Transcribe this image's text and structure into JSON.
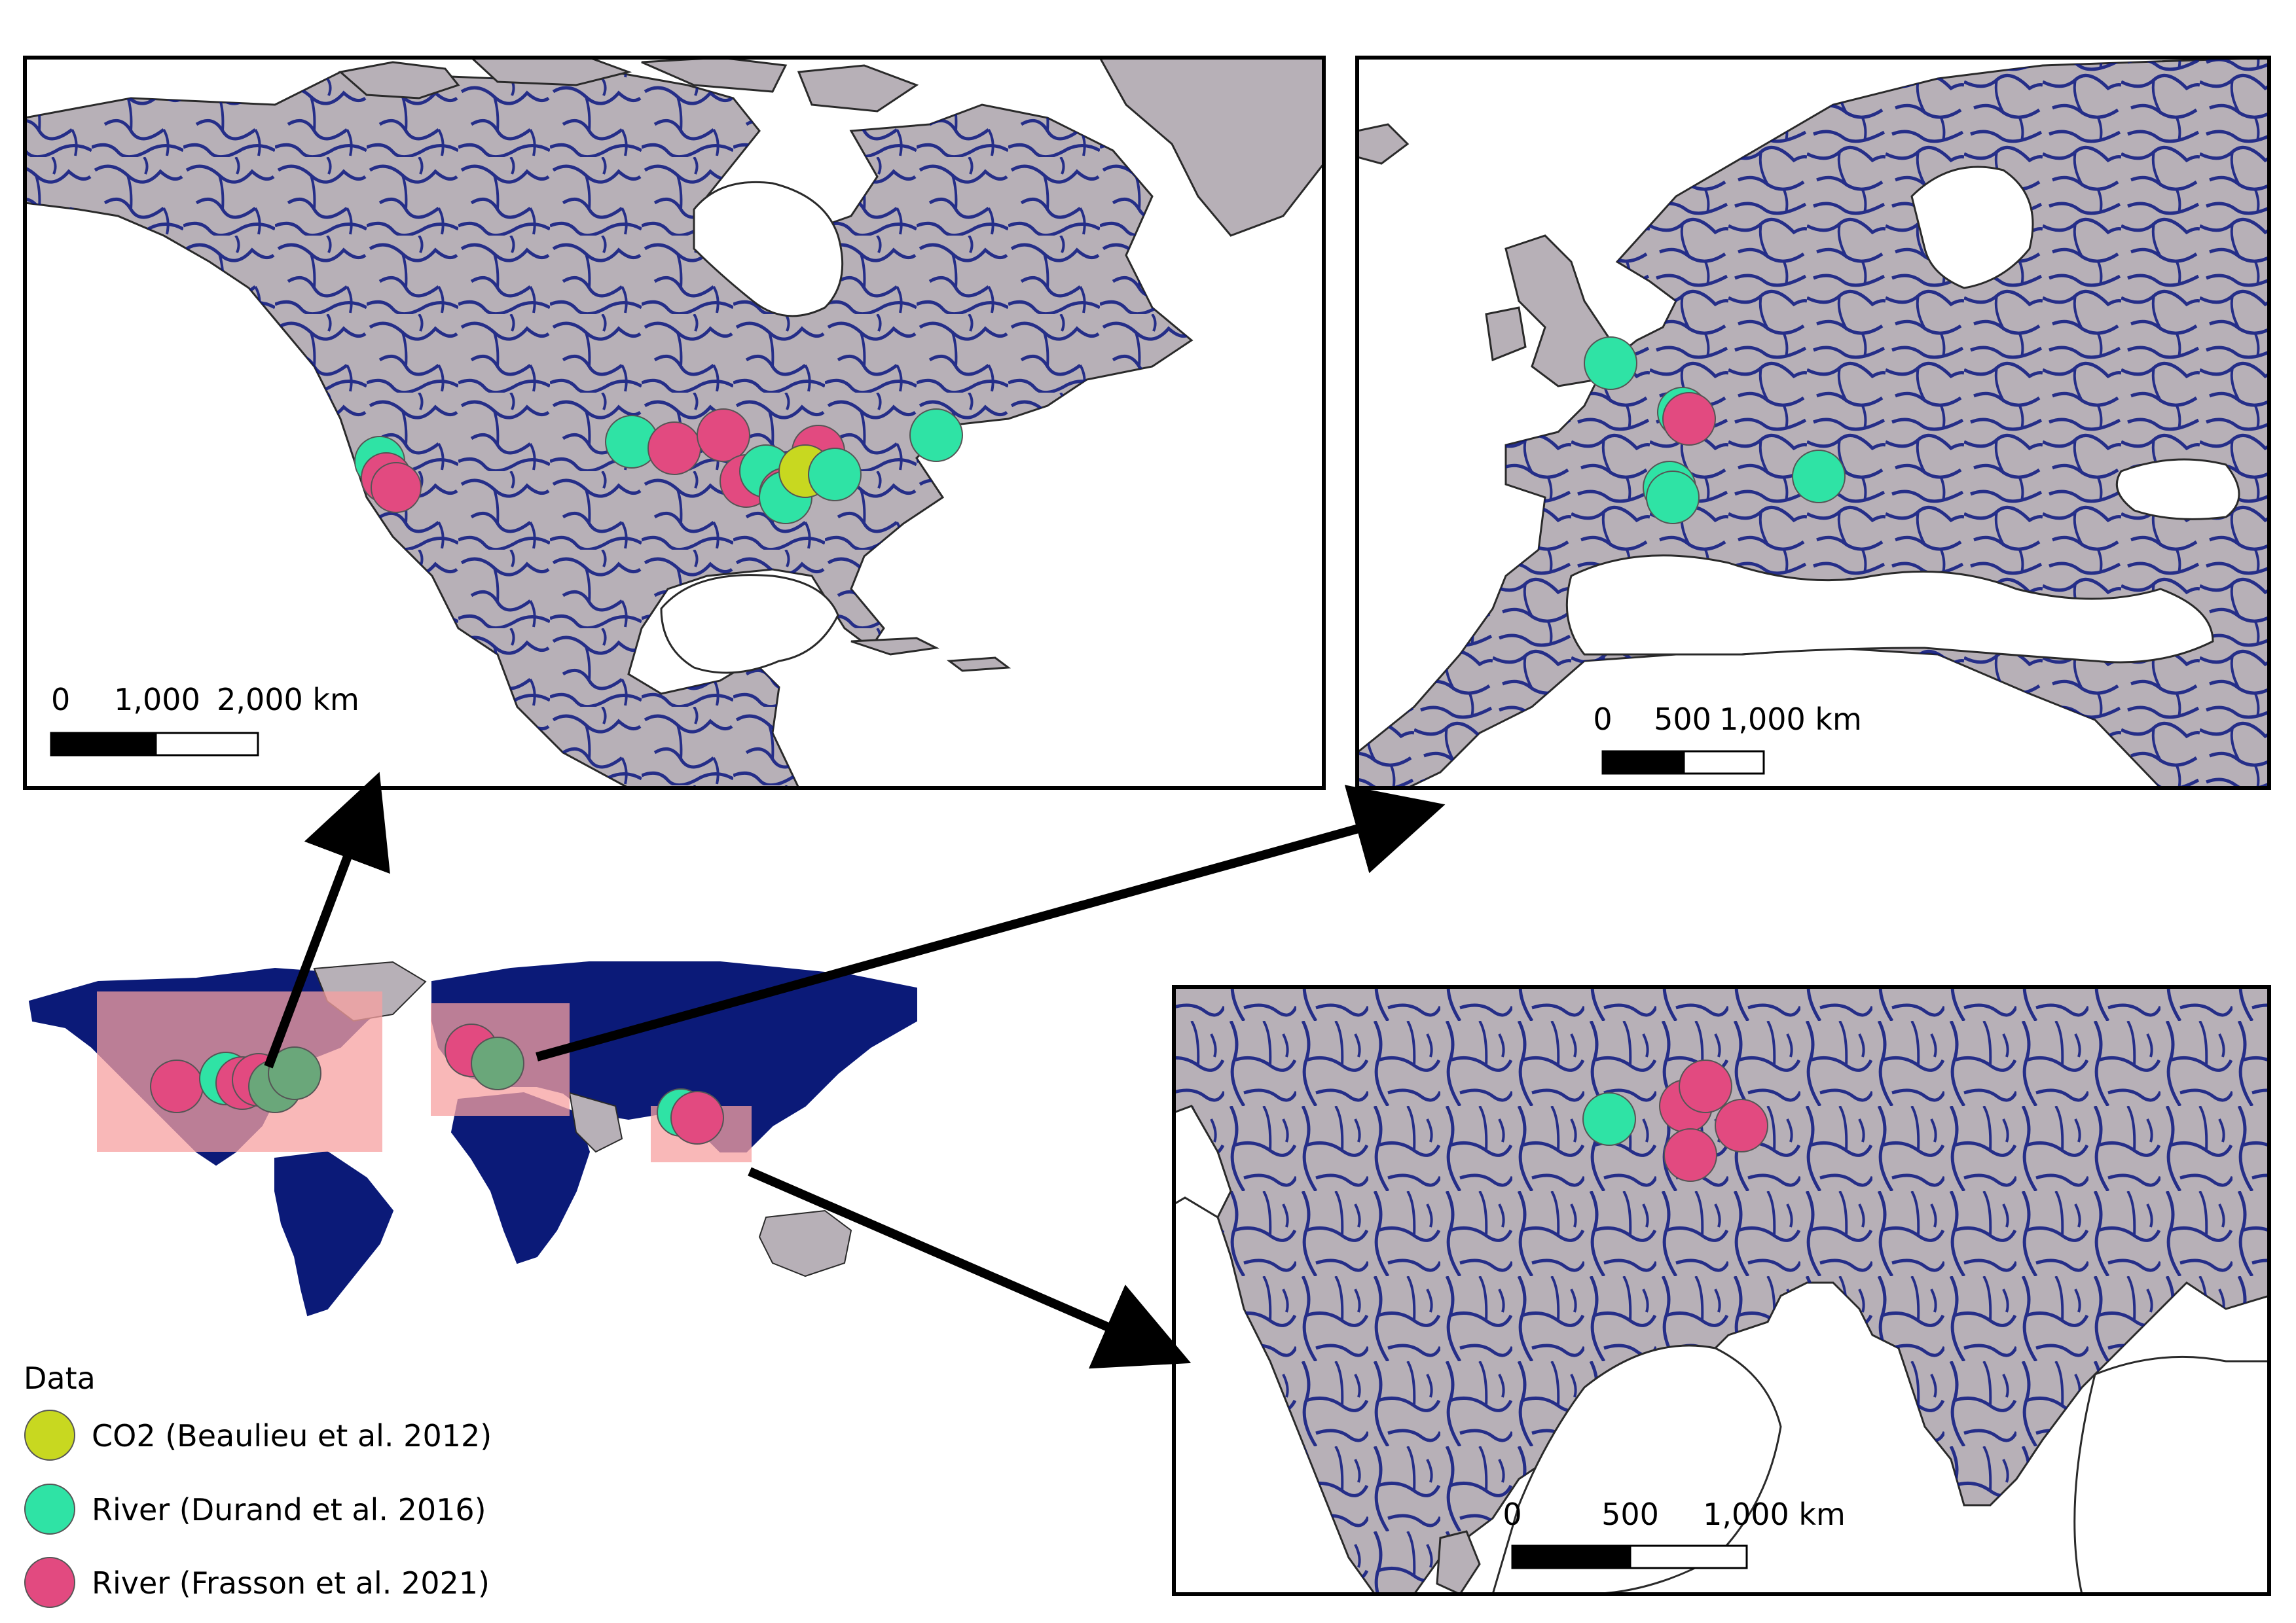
{
  "colors": {
    "land": "#b7b0b7",
    "land_outline": "#2a2a2a",
    "river": "#0b1780",
    "world_land": "#0b1a78",
    "water": "#ffffff",
    "highlight": "#f7a0a0",
    "co2": "#c8d820",
    "durand": "#2fe3a5",
    "frasson": "#e24a80",
    "arrow": "#000000"
  },
  "panels": {
    "north_america": {
      "scale_labels": [
        "0",
        "1,000",
        "2,000 km"
      ]
    },
    "europe": {
      "scale_labels": [
        "0",
        "500",
        "1,000 km"
      ]
    },
    "south_asia": {
      "scale_labels": [
        "0",
        "500",
        "1,000 km"
      ]
    }
  },
  "legend": {
    "title": "Data",
    "items": [
      {
        "label": "CO2 (Beaulieu et al. 2012)",
        "color_key": "co2"
      },
      {
        "label": "River (Durand et al. 2016)",
        "color_key": "durand"
      },
      {
        "label": "River (Frasson et al. 2021)",
        "color_key": "frasson"
      }
    ]
  }
}
